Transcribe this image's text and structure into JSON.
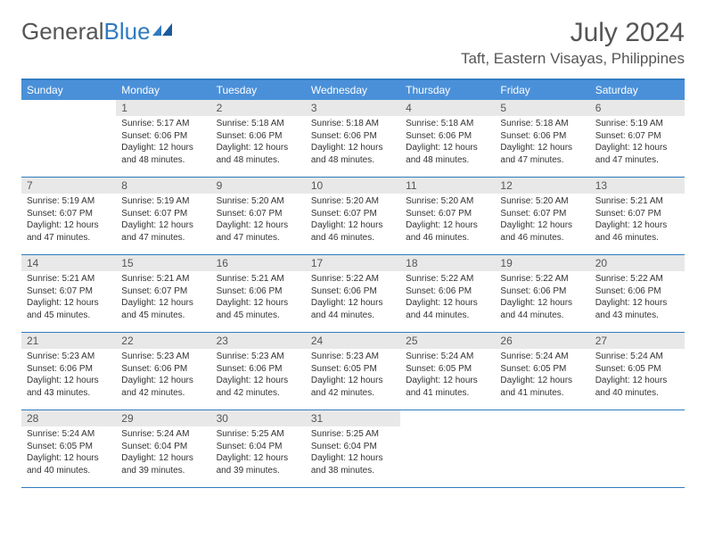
{
  "logo": {
    "text_gray": "General",
    "text_blue": "Blue"
  },
  "title": "July 2024",
  "location": "Taft, Eastern Visayas, Philippines",
  "colors": {
    "header_blue": "#4a90d9",
    "border_blue": "#2f7bbf",
    "daynum_bg": "#e8e8e8",
    "text": "#333333",
    "muted": "#555555"
  },
  "day_names": [
    "Sunday",
    "Monday",
    "Tuesday",
    "Wednesday",
    "Thursday",
    "Friday",
    "Saturday"
  ],
  "weeks": [
    [
      {
        "n": "",
        "sr": "",
        "ss": "",
        "dl1": "",
        "dl2": ""
      },
      {
        "n": "1",
        "sr": "Sunrise: 5:17 AM",
        "ss": "Sunset: 6:06 PM",
        "dl1": "Daylight: 12 hours",
        "dl2": "and 48 minutes."
      },
      {
        "n": "2",
        "sr": "Sunrise: 5:18 AM",
        "ss": "Sunset: 6:06 PM",
        "dl1": "Daylight: 12 hours",
        "dl2": "and 48 minutes."
      },
      {
        "n": "3",
        "sr": "Sunrise: 5:18 AM",
        "ss": "Sunset: 6:06 PM",
        "dl1": "Daylight: 12 hours",
        "dl2": "and 48 minutes."
      },
      {
        "n": "4",
        "sr": "Sunrise: 5:18 AM",
        "ss": "Sunset: 6:06 PM",
        "dl1": "Daylight: 12 hours",
        "dl2": "and 48 minutes."
      },
      {
        "n": "5",
        "sr": "Sunrise: 5:18 AM",
        "ss": "Sunset: 6:06 PM",
        "dl1": "Daylight: 12 hours",
        "dl2": "and 47 minutes."
      },
      {
        "n": "6",
        "sr": "Sunrise: 5:19 AM",
        "ss": "Sunset: 6:07 PM",
        "dl1": "Daylight: 12 hours",
        "dl2": "and 47 minutes."
      }
    ],
    [
      {
        "n": "7",
        "sr": "Sunrise: 5:19 AM",
        "ss": "Sunset: 6:07 PM",
        "dl1": "Daylight: 12 hours",
        "dl2": "and 47 minutes."
      },
      {
        "n": "8",
        "sr": "Sunrise: 5:19 AM",
        "ss": "Sunset: 6:07 PM",
        "dl1": "Daylight: 12 hours",
        "dl2": "and 47 minutes."
      },
      {
        "n": "9",
        "sr": "Sunrise: 5:20 AM",
        "ss": "Sunset: 6:07 PM",
        "dl1": "Daylight: 12 hours",
        "dl2": "and 47 minutes."
      },
      {
        "n": "10",
        "sr": "Sunrise: 5:20 AM",
        "ss": "Sunset: 6:07 PM",
        "dl1": "Daylight: 12 hours",
        "dl2": "and 46 minutes."
      },
      {
        "n": "11",
        "sr": "Sunrise: 5:20 AM",
        "ss": "Sunset: 6:07 PM",
        "dl1": "Daylight: 12 hours",
        "dl2": "and 46 minutes."
      },
      {
        "n": "12",
        "sr": "Sunrise: 5:20 AM",
        "ss": "Sunset: 6:07 PM",
        "dl1": "Daylight: 12 hours",
        "dl2": "and 46 minutes."
      },
      {
        "n": "13",
        "sr": "Sunrise: 5:21 AM",
        "ss": "Sunset: 6:07 PM",
        "dl1": "Daylight: 12 hours",
        "dl2": "and 46 minutes."
      }
    ],
    [
      {
        "n": "14",
        "sr": "Sunrise: 5:21 AM",
        "ss": "Sunset: 6:07 PM",
        "dl1": "Daylight: 12 hours",
        "dl2": "and 45 minutes."
      },
      {
        "n": "15",
        "sr": "Sunrise: 5:21 AM",
        "ss": "Sunset: 6:07 PM",
        "dl1": "Daylight: 12 hours",
        "dl2": "and 45 minutes."
      },
      {
        "n": "16",
        "sr": "Sunrise: 5:21 AM",
        "ss": "Sunset: 6:06 PM",
        "dl1": "Daylight: 12 hours",
        "dl2": "and 45 minutes."
      },
      {
        "n": "17",
        "sr": "Sunrise: 5:22 AM",
        "ss": "Sunset: 6:06 PM",
        "dl1": "Daylight: 12 hours",
        "dl2": "and 44 minutes."
      },
      {
        "n": "18",
        "sr": "Sunrise: 5:22 AM",
        "ss": "Sunset: 6:06 PM",
        "dl1": "Daylight: 12 hours",
        "dl2": "and 44 minutes."
      },
      {
        "n": "19",
        "sr": "Sunrise: 5:22 AM",
        "ss": "Sunset: 6:06 PM",
        "dl1": "Daylight: 12 hours",
        "dl2": "and 44 minutes."
      },
      {
        "n": "20",
        "sr": "Sunrise: 5:22 AM",
        "ss": "Sunset: 6:06 PM",
        "dl1": "Daylight: 12 hours",
        "dl2": "and 43 minutes."
      }
    ],
    [
      {
        "n": "21",
        "sr": "Sunrise: 5:23 AM",
        "ss": "Sunset: 6:06 PM",
        "dl1": "Daylight: 12 hours",
        "dl2": "and 43 minutes."
      },
      {
        "n": "22",
        "sr": "Sunrise: 5:23 AM",
        "ss": "Sunset: 6:06 PM",
        "dl1": "Daylight: 12 hours",
        "dl2": "and 42 minutes."
      },
      {
        "n": "23",
        "sr": "Sunrise: 5:23 AM",
        "ss": "Sunset: 6:06 PM",
        "dl1": "Daylight: 12 hours",
        "dl2": "and 42 minutes."
      },
      {
        "n": "24",
        "sr": "Sunrise: 5:23 AM",
        "ss": "Sunset: 6:05 PM",
        "dl1": "Daylight: 12 hours",
        "dl2": "and 42 minutes."
      },
      {
        "n": "25",
        "sr": "Sunrise: 5:24 AM",
        "ss": "Sunset: 6:05 PM",
        "dl1": "Daylight: 12 hours",
        "dl2": "and 41 minutes."
      },
      {
        "n": "26",
        "sr": "Sunrise: 5:24 AM",
        "ss": "Sunset: 6:05 PM",
        "dl1": "Daylight: 12 hours",
        "dl2": "and 41 minutes."
      },
      {
        "n": "27",
        "sr": "Sunrise: 5:24 AM",
        "ss": "Sunset: 6:05 PM",
        "dl1": "Daylight: 12 hours",
        "dl2": "and 40 minutes."
      }
    ],
    [
      {
        "n": "28",
        "sr": "Sunrise: 5:24 AM",
        "ss": "Sunset: 6:05 PM",
        "dl1": "Daylight: 12 hours",
        "dl2": "and 40 minutes."
      },
      {
        "n": "29",
        "sr": "Sunrise: 5:24 AM",
        "ss": "Sunset: 6:04 PM",
        "dl1": "Daylight: 12 hours",
        "dl2": "and 39 minutes."
      },
      {
        "n": "30",
        "sr": "Sunrise: 5:25 AM",
        "ss": "Sunset: 6:04 PM",
        "dl1": "Daylight: 12 hours",
        "dl2": "and 39 minutes."
      },
      {
        "n": "31",
        "sr": "Sunrise: 5:25 AM",
        "ss": "Sunset: 6:04 PM",
        "dl1": "Daylight: 12 hours",
        "dl2": "and 38 minutes."
      },
      {
        "n": "",
        "sr": "",
        "ss": "",
        "dl1": "",
        "dl2": ""
      },
      {
        "n": "",
        "sr": "",
        "ss": "",
        "dl1": "",
        "dl2": ""
      },
      {
        "n": "",
        "sr": "",
        "ss": "",
        "dl1": "",
        "dl2": ""
      }
    ]
  ]
}
